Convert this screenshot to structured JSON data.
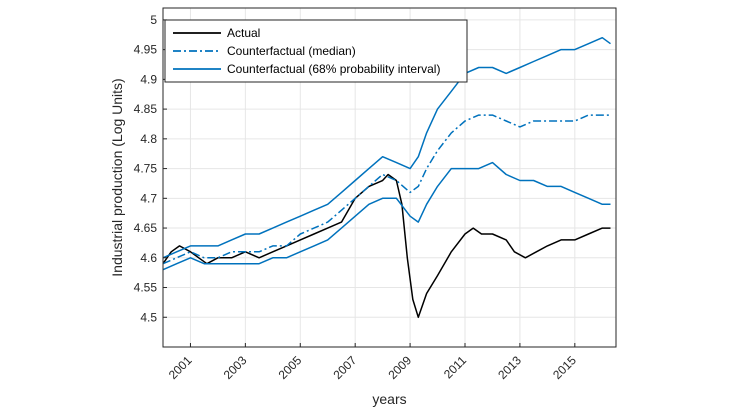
{
  "chart_data": {
    "type": "line",
    "title": "",
    "xlabel": "years",
    "ylabel": "Industrial production (Log Units)",
    "xlim": [
      2000.0,
      2016.5
    ],
    "ylim": [
      4.45,
      5.02
    ],
    "grid": true,
    "legend_position": "top-left",
    "x_ticks": [
      2001,
      2003,
      2005,
      2007,
      2009,
      2011,
      2013,
      2015
    ],
    "x_tick_labels": [
      "2001",
      "2003",
      "2005",
      "2007",
      "2009",
      "2011",
      "2013",
      "2015"
    ],
    "y_ticks": [
      4.5,
      4.55,
      4.6,
      4.65,
      4.7,
      4.75,
      4.8,
      4.85,
      4.9,
      4.95,
      5.0
    ],
    "y_tick_labels": [
      "4.5",
      "4.55",
      "4.6",
      "4.65",
      "4.7",
      "4.75",
      "4.8",
      "4.85",
      "4.9",
      "4.95",
      "5"
    ],
    "colors": {
      "actual": "#000000",
      "counterfactual": "#0072bd",
      "grid": "#e6e6e6",
      "axes": "#262626"
    },
    "series": [
      {
        "name": "Actual",
        "style": "solid",
        "color": "#000000",
        "x": [
          2000.0,
          2000.3,
          2000.6,
          2001.0,
          2001.3,
          2001.6,
          2002.0,
          2002.5,
          2003.0,
          2003.5,
          2004.0,
          2004.5,
          2005.0,
          2005.5,
          2006.0,
          2006.5,
          2007.0,
          2007.5,
          2008.0,
          2008.2,
          2008.5,
          2008.7,
          2008.9,
          2009.1,
          2009.3,
          2009.6,
          2010.0,
          2010.5,
          2011.0,
          2011.3,
          2011.6,
          2012.0,
          2012.5,
          2012.8,
          2013.2,
          2013.6,
          2014.0,
          2014.5,
          2015.0,
          2015.5,
          2016.0,
          2016.3
        ],
        "y": [
          4.59,
          4.61,
          4.62,
          4.61,
          4.6,
          4.59,
          4.6,
          4.6,
          4.61,
          4.6,
          4.61,
          4.62,
          4.63,
          4.64,
          4.65,
          4.66,
          4.7,
          4.72,
          4.73,
          4.74,
          4.73,
          4.69,
          4.6,
          4.53,
          4.5,
          4.54,
          4.57,
          4.61,
          4.64,
          4.65,
          4.64,
          4.64,
          4.63,
          4.61,
          4.6,
          4.61,
          4.62,
          4.63,
          4.63,
          4.64,
          4.65,
          4.65
        ]
      },
      {
        "name": "Counterfactual (median)",
        "style": "dashdot",
        "color": "#0072bd",
        "x": [
          2000.0,
          2000.5,
          2001.0,
          2001.5,
          2002.0,
          2002.5,
          2003.0,
          2003.5,
          2004.0,
          2004.5,
          2005.0,
          2005.5,
          2006.0,
          2006.5,
          2007.0,
          2007.5,
          2008.0,
          2008.5,
          2009.0,
          2009.3,
          2009.6,
          2010.0,
          2010.5,
          2011.0,
          2011.5,
          2012.0,
          2012.5,
          2013.0,
          2013.5,
          2014.0,
          2014.5,
          2015.0,
          2015.5,
          2016.0,
          2016.3
        ],
        "y": [
          4.59,
          4.6,
          4.61,
          4.6,
          4.6,
          4.61,
          4.61,
          4.61,
          4.62,
          4.62,
          4.64,
          4.65,
          4.66,
          4.68,
          4.7,
          4.72,
          4.74,
          4.73,
          4.71,
          4.72,
          4.75,
          4.78,
          4.81,
          4.83,
          4.84,
          4.84,
          4.83,
          4.82,
          4.83,
          4.83,
          4.83,
          4.83,
          4.84,
          4.84,
          4.84
        ]
      },
      {
        "name": "Counterfactual (68% probability interval)",
        "style": "solid",
        "color": "#0072bd",
        "x": [
          2000.0,
          2000.5,
          2001.0,
          2001.5,
          2002.0,
          2002.5,
          2003.0,
          2003.5,
          2004.0,
          2004.5,
          2005.0,
          2005.5,
          2006.0,
          2006.5,
          2007.0,
          2007.5,
          2008.0,
          2008.5,
          2009.0,
          2009.3,
          2009.6,
          2010.0,
          2010.5,
          2011.0,
          2011.5,
          2012.0,
          2012.5,
          2013.0,
          2013.5,
          2014.0,
          2014.5,
          2015.0,
          2015.5,
          2016.0,
          2016.3
        ],
        "y": [
          4.6,
          4.61,
          4.62,
          4.62,
          4.62,
          4.63,
          4.64,
          4.64,
          4.65,
          4.66,
          4.67,
          4.68,
          4.69,
          4.71,
          4.73,
          4.75,
          4.77,
          4.76,
          4.75,
          4.77,
          4.81,
          4.85,
          4.88,
          4.91,
          4.92,
          4.92,
          4.91,
          4.92,
          4.93,
          4.94,
          4.95,
          4.95,
          4.96,
          4.97,
          4.96
        ]
      },
      {
        "name": "",
        "style": "solid",
        "color": "#0072bd",
        "x": [
          2000.0,
          2000.5,
          2001.0,
          2001.5,
          2002.0,
          2002.5,
          2003.0,
          2003.5,
          2004.0,
          2004.5,
          2005.0,
          2005.5,
          2006.0,
          2006.5,
          2007.0,
          2007.5,
          2008.0,
          2008.5,
          2009.0,
          2009.3,
          2009.6,
          2010.0,
          2010.5,
          2011.0,
          2011.5,
          2012.0,
          2012.5,
          2013.0,
          2013.5,
          2014.0,
          2014.5,
          2015.0,
          2015.5,
          2016.0,
          2016.3
        ],
        "y": [
          4.58,
          4.59,
          4.6,
          4.59,
          4.59,
          4.59,
          4.59,
          4.59,
          4.6,
          4.6,
          4.61,
          4.62,
          4.63,
          4.65,
          4.67,
          4.69,
          4.7,
          4.7,
          4.67,
          4.66,
          4.69,
          4.72,
          4.75,
          4.75,
          4.75,
          4.76,
          4.74,
          4.73,
          4.73,
          4.72,
          4.72,
          4.71,
          4.7,
          4.69,
          4.69
        ]
      }
    ]
  }
}
